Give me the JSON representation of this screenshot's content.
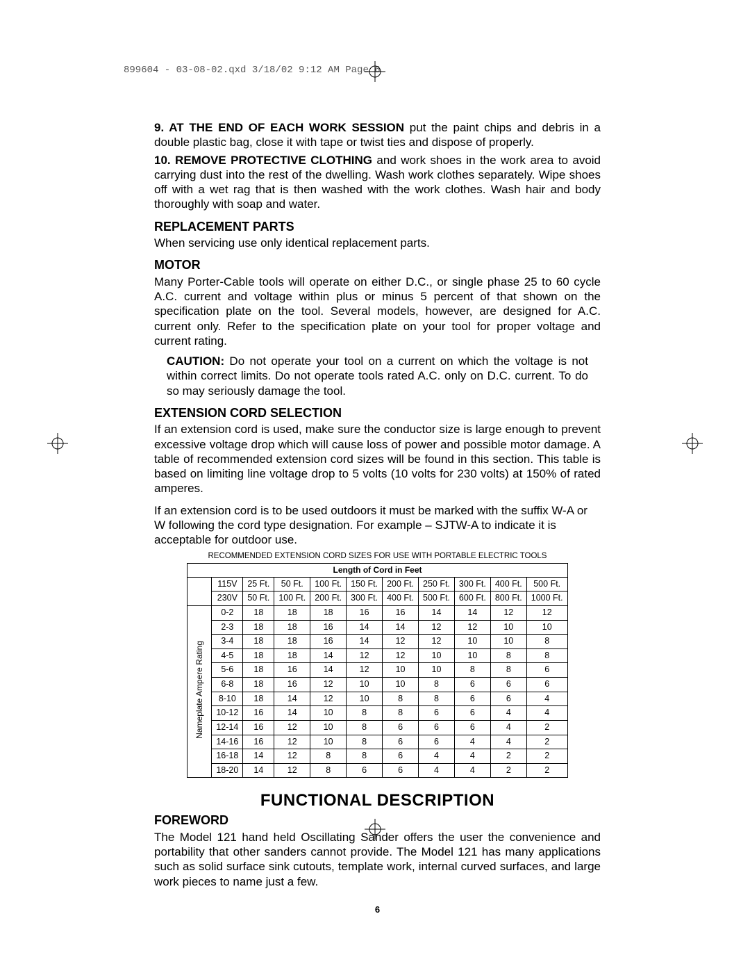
{
  "header": "899604 - 03-08-02.qxd  3/18/02  9:12 AM  Page 6",
  "item9_label": "9.  AT THE END OF EACH WORK SESSION",
  "item9_rest": " put the paint chips and debris in a double plastic bag, close it with tape or twist ties and dispose of properly.",
  "item10_label": "10.  REMOVE PROTECTIVE CLOTHING",
  "item10_rest": " and work shoes in the work area to avoid carrying dust into the rest of the dwelling. Wash work clothes separately. Wipe shoes off with a wet rag that is then washed with the work clothes. Wash hair and body thoroughly with soap and water.",
  "replacement_h": "REPLACEMENT PARTS",
  "replacement_p": "When servicing use only identical replacement parts.",
  "motor_h": "MOTOR",
  "motor_p": "Many Porter-Cable tools will operate on either D.C., or single phase 25 to 60 cycle A.C. current and voltage within plus or minus 5 percent of that shown on the specification plate on the tool. Several models, however, are designed for A.C. current only. Refer to the specification plate on your tool for proper voltage and current rating.",
  "caution_label": "CAUTION:",
  "caution_rest": " Do not operate your tool on a current on which the voltage is not within correct limits. Do not operate tools rated A.C. only on D.C. current. To do so may seriously damage the tool.",
  "ext_h": "EXTENSION CORD SELECTION",
  "ext_p1": "If an extension cord is used, make sure the conductor size is large enough to prevent excessive voltage drop which will cause loss of power and possible motor damage. A table of recommended extension cord sizes will be found in this section. This table is based on limiting line voltage drop to 5 volts (10 volts for 230 volts) at 150% of rated amperes.",
  "ext_p2": "If an extension cord is to be used outdoors it must be marked with the suffix W-A or W following the cord type designation. For example – SJTW-A to indicate it is acceptable for outdoor use.",
  "table_caption": "RECOMMENDED EXTENSION CORD SIZES FOR USE WITH PORTABLE ELECTRIC TOOLS",
  "table": {
    "length_header": "Length of Cord in Feet",
    "side_label": "Nameplate Ampere Rating",
    "row115_label": "115V",
    "row115": [
      "25 Ft.",
      "50 Ft.",
      "100 Ft.",
      "150 Ft.",
      "200 Ft.",
      "250 Ft.",
      "300 Ft.",
      "400 Ft.",
      "500 Ft."
    ],
    "row230_label": "230V",
    "row230": [
      "50 Ft.",
      "100 Ft.",
      "200 Ft.",
      "300 Ft.",
      "400 Ft.",
      "500 Ft.",
      "600 Ft.",
      "800 Ft.",
      "1000 Ft."
    ],
    "rows": [
      {
        "amp": "0-2",
        "v": [
          "18",
          "18",
          "18",
          "16",
          "16",
          "14",
          "14",
          "12",
          "12"
        ]
      },
      {
        "amp": "2-3",
        "v": [
          "18",
          "18",
          "16",
          "14",
          "14",
          "12",
          "12",
          "10",
          "10"
        ]
      },
      {
        "amp": "3-4",
        "v": [
          "18",
          "18",
          "16",
          "14",
          "12",
          "12",
          "10",
          "10",
          "8"
        ]
      },
      {
        "amp": "4-5",
        "v": [
          "18",
          "18",
          "14",
          "12",
          "12",
          "10",
          "10",
          "8",
          "8"
        ]
      },
      {
        "amp": "5-6",
        "v": [
          "18",
          "16",
          "14",
          "12",
          "10",
          "10",
          "8",
          "8",
          "6"
        ]
      },
      {
        "amp": "6-8",
        "v": [
          "18",
          "16",
          "12",
          "10",
          "10",
          "8",
          "6",
          "6",
          "6"
        ]
      },
      {
        "amp": "8-10",
        "v": [
          "18",
          "14",
          "12",
          "10",
          "8",
          "8",
          "6",
          "6",
          "4"
        ]
      },
      {
        "amp": "10-12",
        "v": [
          "16",
          "14",
          "10",
          "8",
          "8",
          "6",
          "6",
          "4",
          "4"
        ]
      },
      {
        "amp": "12-14",
        "v": [
          "16",
          "12",
          "10",
          "8",
          "6",
          "6",
          "6",
          "4",
          "2"
        ]
      },
      {
        "amp": "14-16",
        "v": [
          "16",
          "12",
          "10",
          "8",
          "6",
          "6",
          "4",
          "4",
          "2"
        ]
      },
      {
        "amp": "16-18",
        "v": [
          "14",
          "12",
          "8",
          "8",
          "6",
          "4",
          "4",
          "2",
          "2"
        ]
      },
      {
        "amp": "18-20",
        "v": [
          "14",
          "12",
          "8",
          "6",
          "6",
          "4",
          "4",
          "2",
          "2"
        ]
      }
    ]
  },
  "func_h": "FUNCTIONAL DESCRIPTION",
  "foreword_h": "FOREWORD",
  "foreword_p": "The Model 121 hand held Oscillating Sander offers the user the convenience and portability that other sanders cannot provide. The Model 121 has many applications such as solid surface sink cutouts, template work, internal curved surfaces, and large work pieces to name just a few.",
  "page_number": "6"
}
